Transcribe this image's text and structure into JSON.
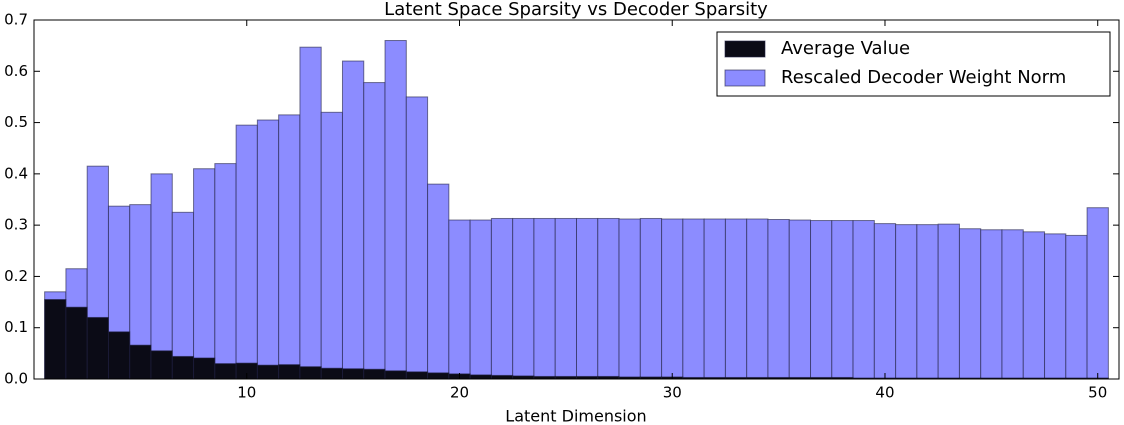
{
  "chart_data": {
    "type": "bar",
    "title": "Latent Space Sparsity vs Decoder Sparsity",
    "x_label": "Latent Dimension",
    "x": [
      1,
      2,
      3,
      4,
      5,
      6,
      7,
      8,
      9,
      10,
      11,
      12,
      13,
      14,
      15,
      16,
      17,
      18,
      19,
      20,
      21,
      22,
      23,
      24,
      25,
      26,
      27,
      28,
      29,
      30,
      31,
      32,
      33,
      34,
      35,
      36,
      37,
      38,
      39,
      40,
      41,
      42,
      43,
      44,
      45,
      46,
      47,
      48,
      49,
      50
    ],
    "series": [
      {
        "name": "Average Value",
        "color": "#0b0b16",
        "values": [
          0.155,
          0.14,
          0.12,
          0.092,
          0.066,
          0.055,
          0.044,
          0.041,
          0.03,
          0.031,
          0.027,
          0.028,
          0.024,
          0.021,
          0.02,
          0.019,
          0.016,
          0.014,
          0.012,
          0.01,
          0.008,
          0.007,
          0.006,
          0.005,
          0.005,
          0.005,
          0.005,
          0.004,
          0.004,
          0.004,
          0.003,
          0.003,
          0.003,
          0.003,
          0.003,
          0.003,
          0.003,
          0.003,
          0.002,
          0.002,
          0.002,
          0.002,
          0.002,
          0.002,
          0.002,
          0.002,
          0.002,
          0.002,
          0.002,
          0.002
        ]
      },
      {
        "name": "Rescaled Decoder Weight Norm",
        "color": "#8c8cff",
        "values": [
          0.17,
          0.215,
          0.415,
          0.337,
          0.34,
          0.4,
          0.325,
          0.41,
          0.42,
          0.495,
          0.505,
          0.515,
          0.647,
          0.52,
          0.62,
          0.578,
          0.66,
          0.55,
          0.38,
          0.31,
          0.31,
          0.313,
          0.313,
          0.313,
          0.313,
          0.313,
          0.313,
          0.312,
          0.313,
          0.312,
          0.312,
          0.312,
          0.312,
          0.312,
          0.311,
          0.31,
          0.309,
          0.309,
          0.309,
          0.303,
          0.301,
          0.301,
          0.302,
          0.293,
          0.291,
          0.291,
          0.287,
          0.283,
          0.28,
          0.334
        ]
      }
    ],
    "xlim": [
      0,
      51
    ],
    "xticks": [
      10,
      20,
      30,
      40,
      50
    ],
    "ylim": [
      0,
      0.7
    ],
    "yticks": [
      {
        "value": 0,
        "label": "0.0"
      },
      0.1,
      0.2,
      0.3,
      0.4,
      0.5,
      0.6,
      0.7
    ],
    "legend": "upper right"
  }
}
